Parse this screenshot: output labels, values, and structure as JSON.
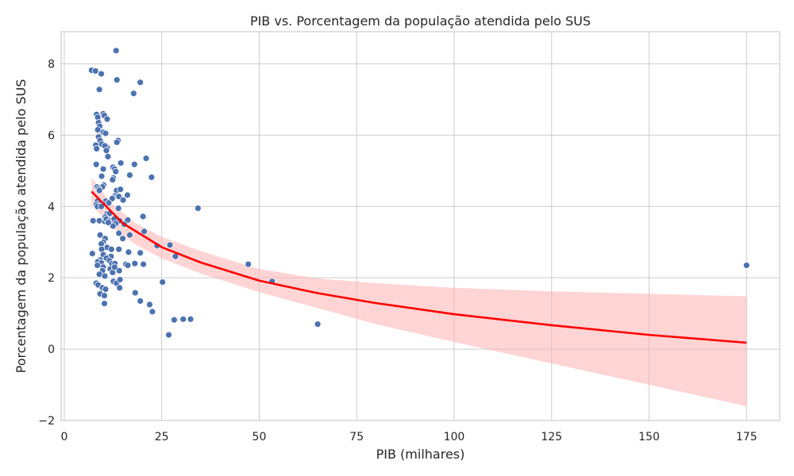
{
  "chart_data": {
    "type": "scatter",
    "title": "PIB vs. Porcentagem da população atendida pelo SUS",
    "xlabel": "PIB (milhares)",
    "ylabel": "Porcentagem da população atendida pelo SUS",
    "xlim": [
      -0.8,
      183.5
    ],
    "ylim": [
      -2.0,
      8.9
    ],
    "xticks": [
      0,
      25,
      50,
      75,
      100,
      125,
      150,
      175
    ],
    "yticks": [
      -2,
      0,
      2,
      4,
      6,
      8
    ],
    "xtick_labels": [
      "0",
      "25",
      "50",
      "75",
      "100",
      "125",
      "150",
      "175"
    ],
    "ytick_labels": [
      "−2",
      "0",
      "2",
      "4",
      "6",
      "8"
    ],
    "grid": true,
    "colors": {
      "points": "#4c72b0",
      "point_edge": "#ffffff",
      "fit_line": "#ff0000",
      "confidence_band": "#ffb0b0",
      "grid": "#cccccc",
      "background": "#ffffff"
    },
    "series": [
      {
        "kind": "scatter",
        "x": [
          13.3,
          7.0,
          8.0,
          9.5,
          13.5,
          19.5,
          9.0,
          17.8,
          8.3,
          10.0,
          10.3,
          8.6,
          11.0,
          8.8,
          9.1,
          8.6,
          10.0,
          10.6,
          11.0,
          8.8,
          9.2,
          13.8,
          13.5,
          8.1,
          8.3,
          9.6,
          10.4,
          10.8,
          11.2,
          12.5,
          12.9,
          10.0,
          21.0,
          8.2,
          14.5,
          18.0,
          9.6,
          12.6,
          13.2,
          16.8,
          22.4,
          10.1,
          12.4,
          8.4,
          9.8,
          8.8,
          9.0,
          13.4,
          14.4,
          13.0,
          12.5,
          12.3,
          16.2,
          14.0,
          15.1,
          8.5,
          10.6,
          11.4,
          9.3,
          10.0,
          8.2,
          8.5,
          9.5,
          13.9,
          34.3,
          11.0,
          11.6,
          10.5,
          20.2,
          7.4,
          9.0,
          10.4,
          10.8,
          11.8,
          12.3,
          12.8,
          14.2,
          15.9,
          13.2,
          12.5,
          11.3,
          16.3,
          15.4,
          16.8,
          14.0,
          20.5,
          9.2,
          10.5,
          15.0,
          10.0,
          9.5,
          23.8,
          27.1,
          11.0,
          12.1,
          9.6,
          14.0,
          16.5,
          19.5,
          28.5,
          7.2,
          10.0,
          11.2,
          12.0,
          10.8,
          9.2,
          8.6,
          11.6,
          12.2,
          9.5,
          13.0,
          15.8,
          18.1,
          16.3,
          20.3,
          47.2,
          10.0,
          8.5,
          9.8,
          11.8,
          12.4,
          14.1,
          12.9,
          9.0,
          10.4,
          25.2,
          53.3,
          12.6,
          13.4,
          14.3,
          8.2,
          8.7,
          9.8,
          10.6,
          14.2,
          18.3,
          19.5,
          18.2,
          21.9,
          9.2,
          10.3,
          22.6,
          10.3,
          28.2,
          30.5,
          32.4,
          65.0,
          26.8,
          175.0
        ],
        "y": [
          8.37,
          7.82,
          7.8,
          7.72,
          7.55,
          7.48,
          7.28,
          7.17,
          6.58,
          6.6,
          6.55,
          6.5,
          6.45,
          6.35,
          6.25,
          6.15,
          6.08,
          6.05,
          5.65,
          5.95,
          5.85,
          5.85,
          5.8,
          5.72,
          5.62,
          5.75,
          5.7,
          5.57,
          5.4,
          5.1,
          5.05,
          5.05,
          5.35,
          5.18,
          5.22,
          5.18,
          4.85,
          4.8,
          4.98,
          4.88,
          4.82,
          4.6,
          4.75,
          4.55,
          4.55,
          4.5,
          4.45,
          4.45,
          4.48,
          4.3,
          4.25,
          4.22,
          4.32,
          4.28,
          4.18,
          4.15,
          4.15,
          4.1,
          4.1,
          4.05,
          4.05,
          4.0,
          4.0,
          3.95,
          3.95,
          3.8,
          3.8,
          3.7,
          3.72,
          3.6,
          3.6,
          3.58,
          3.65,
          3.6,
          3.55,
          3.65,
          3.6,
          3.58,
          3.52,
          3.45,
          3.55,
          3.62,
          3.5,
          3.2,
          3.25,
          3.3,
          3.2,
          3.1,
          3.1,
          3.0,
          2.95,
          2.9,
          2.92,
          2.85,
          2.8,
          2.8,
          2.8,
          2.72,
          2.7,
          2.6,
          2.68,
          2.65,
          2.58,
          2.6,
          2.55,
          2.5,
          2.45,
          2.48,
          2.4,
          2.42,
          2.4,
          2.38,
          2.4,
          2.35,
          2.38,
          2.38,
          2.3,
          2.35,
          2.2,
          2.25,
          2.15,
          2.2,
          2.3,
          2.1,
          2.05,
          1.88,
          1.9,
          1.9,
          1.85,
          1.95,
          1.85,
          1.8,
          1.72,
          1.68,
          1.72,
          1.58,
          1.35,
          1.58,
          1.25,
          1.55,
          1.5,
          1.05,
          1.28,
          0.82,
          0.84,
          0.84,
          0.7,
          0.4,
          2.35
        ]
      },
      {
        "kind": "regression",
        "x": [
          7,
          15,
          25,
          35,
          50,
          65,
          80,
          100,
          125,
          150,
          175
        ],
        "y": [
          4.42,
          3.53,
          2.86,
          2.43,
          1.92,
          1.57,
          1.29,
          0.98,
          0.67,
          0.4,
          0.18
        ]
      },
      {
        "kind": "confidence_band",
        "x": [
          7,
          12,
          18,
          25,
          35,
          50,
          65,
          80,
          100,
          125,
          150,
          175
        ],
        "lower": [
          4.05,
          3.45,
          2.95,
          2.55,
          2.12,
          1.6,
          1.15,
          0.7,
          0.2,
          -0.4,
          -1.0,
          -1.6
        ],
        "upper": [
          4.8,
          4.1,
          3.55,
          3.15,
          2.75,
          2.25,
          1.98,
          1.85,
          1.72,
          1.62,
          1.55,
          1.48
        ]
      }
    ]
  }
}
